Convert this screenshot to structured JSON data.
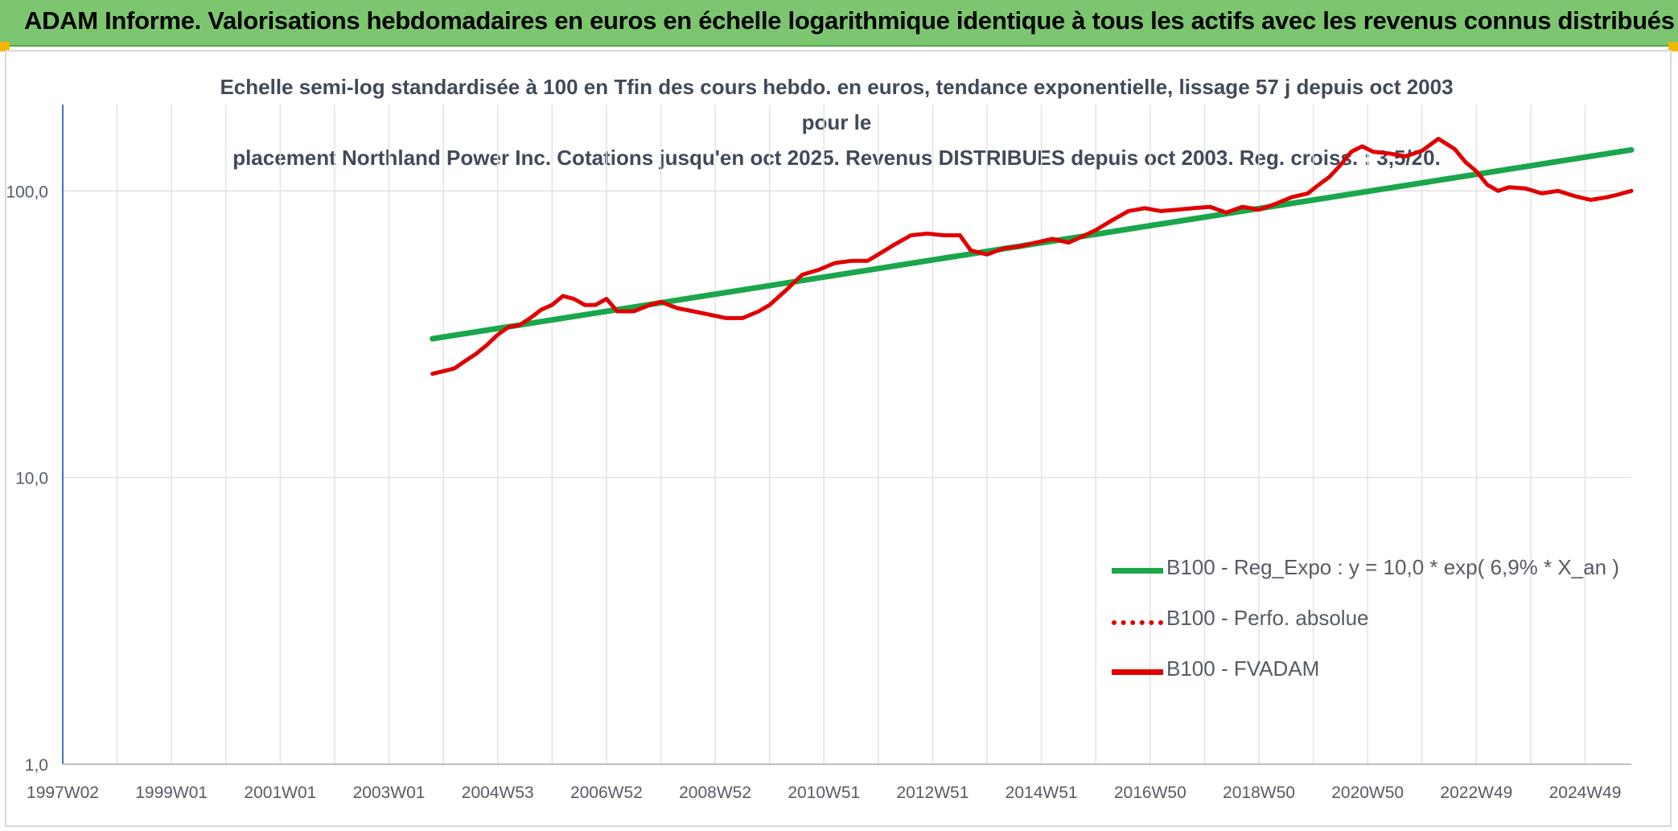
{
  "banner": {
    "title": "ADAM Informe. Valorisations hebdomadaires en euros en échelle logarithmique identique à tous les actifs avec les revenus connus distribués"
  },
  "colors": {
    "banner_bg": "#7dc670",
    "corner": "#f2b800",
    "trend": "#1aa64a",
    "price": "#e00000",
    "grid": "#e2e2e2",
    "axis": "#4472c4"
  },
  "chart_data": {
    "type": "line",
    "title_line1": "Echelle semi-log standardisée à 100 en Tfin des cours hebdo. en euros, tendance exponentielle, lissage 57 j depuis oct 2003 pour le",
    "title_line2": "placement Northland Power Inc. Cotations jusqu'en oct 2025. Revenus DISTRIBUES depuis oct 2003. Reg. croiss. : 3,5/20.",
    "y_scale": "log",
    "ylim": [
      1,
      200
    ],
    "xlim": [
      1997.0,
      2025.85
    ],
    "y_ticks": [
      {
        "value": 1,
        "label": "1,0"
      },
      {
        "value": 10,
        "label": "10,0"
      },
      {
        "value": 100,
        "label": "100,0"
      }
    ],
    "x_ticks": [
      {
        "value": 1997.0,
        "label": "1997W02"
      },
      {
        "value": 1999.0,
        "label": "1999W01"
      },
      {
        "value": 2001.0,
        "label": "2001W01"
      },
      {
        "value": 2003.0,
        "label": "2003W01"
      },
      {
        "value": 2005.0,
        "label": "2004W53"
      },
      {
        "value": 2007.0,
        "label": "2006W52"
      },
      {
        "value": 2009.0,
        "label": "2008W52"
      },
      {
        "value": 2011.0,
        "label": "2010W51"
      },
      {
        "value": 2013.0,
        "label": "2012W51"
      },
      {
        "value": 2015.0,
        "label": "2014W51"
      },
      {
        "value": 2017.0,
        "label": "2016W50"
      },
      {
        "value": 2019.0,
        "label": "2018W50"
      },
      {
        "value": 2021.0,
        "label": "2020W50"
      },
      {
        "value": 2023.0,
        "label": "2022W49"
      },
      {
        "value": 2025.0,
        "label": "2024W49"
      }
    ],
    "gridlines": true,
    "legend_position": "bottom-right",
    "series": [
      {
        "name": "B100 - Reg_Expo : y = 10,0 * exp( 6,9% *  X_an )",
        "style": "solid",
        "color": "#1aa64a",
        "x": [
          2003.8,
          2025.85
        ],
        "y": [
          30.5,
          139.0
        ]
      },
      {
        "name": "B100 - Perfo. absolue",
        "style": "dotted",
        "color": "#e00000",
        "x": [],
        "y": []
      },
      {
        "name": "B100 - FVADAM",
        "style": "solid",
        "color": "#e00000",
        "x": [
          2003.8,
          2004.0,
          2004.2,
          2004.4,
          2004.6,
          2004.8,
          2005.0,
          2005.2,
          2005.4,
          2005.6,
          2005.8,
          2006.0,
          2006.2,
          2006.4,
          2006.6,
          2006.8,
          2007.0,
          2007.2,
          2007.5,
          2007.8,
          2008.0,
          2008.3,
          2008.6,
          2008.9,
          2009.2,
          2009.5,
          2009.8,
          2010.0,
          2010.3,
          2010.6,
          2010.9,
          2011.2,
          2011.5,
          2011.8,
          2012.0,
          2012.3,
          2012.6,
          2012.9,
          2013.2,
          2013.5,
          2013.7,
          2014.0,
          2014.3,
          2014.6,
          2014.9,
          2015.2,
          2015.5,
          2015.8,
          2016.0,
          2016.3,
          2016.6,
          2016.9,
          2017.2,
          2017.5,
          2017.8,
          2018.1,
          2018.4,
          2018.7,
          2019.0,
          2019.3,
          2019.6,
          2019.9,
          2020.1,
          2020.3,
          2020.5,
          2020.7,
          2020.9,
          2021.1,
          2021.4,
          2021.7,
          2022.0,
          2022.3,
          2022.6,
          2022.8,
          2023.0,
          2023.2,
          2023.4,
          2023.6,
          2023.9,
          2024.2,
          2024.5,
          2024.8,
          2025.1,
          2025.4,
          2025.6,
          2025.85
        ],
        "y": [
          23,
          23.5,
          24,
          25.5,
          27,
          29,
          31.5,
          33.5,
          34,
          36,
          38.5,
          40,
          43,
          42,
          40,
          40,
          42,
          38,
          38,
          40,
          41,
          39,
          38,
          37,
          36,
          36,
          38,
          40,
          45,
          51,
          53,
          56,
          57,
          57,
          60,
          65,
          70,
          71,
          70,
          70,
          62,
          60,
          63,
          64,
          66,
          68,
          66,
          70,
          73,
          79,
          85,
          87,
          85,
          86,
          87,
          88,
          84,
          88,
          86,
          90,
          95,
          98,
          105,
          112,
          123,
          137,
          143,
          137,
          135,
          132,
          138,
          152,
          140,
          126,
          117,
          105,
          100,
          103,
          102,
          98,
          100,
          96,
          93,
          95,
          97,
          100
        ]
      }
    ]
  }
}
